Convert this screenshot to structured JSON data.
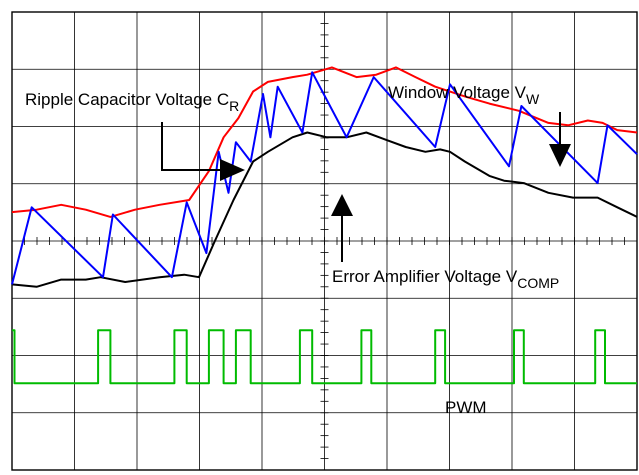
{
  "chart_data": {
    "type": "line",
    "grid": "on",
    "annotations": {
      "ripple_capacitor": {
        "text": "Ripple Capacitor Voltage C",
        "sub": "R"
      },
      "window_voltage": {
        "text": "Window Voltage V",
        "sub": "W"
      },
      "error_amplifier": {
        "text": "Error Amplifier Voltage V",
        "sub": "COMP"
      },
      "pwm": {
        "text": "PWM"
      }
    },
    "series": [
      {
        "key": "window",
        "color": "#ff0000",
        "points": [
          [
            0,
            5.35
          ],
          [
            0.5,
            5.4
          ],
          [
            1,
            5.5
          ],
          [
            1.5,
            5.4
          ],
          [
            2,
            5.25
          ],
          [
            2.5,
            5.4
          ],
          [
            3,
            5.5
          ],
          [
            3.6,
            5.6
          ],
          [
            4,
            6.2
          ],
          [
            4.3,
            6.9
          ],
          [
            4.6,
            7.3
          ],
          [
            4.9,
            7.85
          ],
          [
            5.2,
            8.05
          ],
          [
            5.7,
            8.15
          ],
          [
            6,
            8.2
          ],
          [
            6.5,
            8.35
          ],
          [
            7,
            8.15
          ],
          [
            7.4,
            8.2
          ],
          [
            7.8,
            8.35
          ],
          [
            8.2,
            8.15
          ],
          [
            8.6,
            7.95
          ],
          [
            9.2,
            7.75
          ],
          [
            9.7,
            7.6
          ],
          [
            10.3,
            7.45
          ],
          [
            10.9,
            7.2
          ],
          [
            11.3,
            7.15
          ],
          [
            11.7,
            7.25
          ],
          [
            12,
            7.2
          ],
          [
            12.3,
            7.05
          ],
          [
            12.7,
            7.0
          ]
        ]
      },
      {
        "key": "comp",
        "color": "#000000",
        "points": [
          [
            0,
            3.85
          ],
          [
            0.5,
            3.8
          ],
          [
            1,
            3.95
          ],
          [
            1.5,
            3.95
          ],
          [
            1.8,
            4.0
          ],
          [
            2.3,
            3.9
          ],
          [
            3,
            4.0
          ],
          [
            3.5,
            4.05
          ],
          [
            3.8,
            4.0
          ],
          [
            4.1,
            4.7
          ],
          [
            4.5,
            5.6
          ],
          [
            4.9,
            6.4
          ],
          [
            5.2,
            6.6
          ],
          [
            5.7,
            6.9
          ],
          [
            6,
            7.0
          ],
          [
            6.4,
            6.9
          ],
          [
            6.8,
            6.9
          ],
          [
            7.2,
            7.0
          ],
          [
            7.6,
            6.85
          ],
          [
            8,
            6.7
          ],
          [
            8.4,
            6.6
          ],
          [
            8.7,
            6.65
          ],
          [
            8.9,
            6.6
          ],
          [
            9.2,
            6.4
          ],
          [
            9.7,
            6.1
          ],
          [
            10,
            6.0
          ],
          [
            10.4,
            5.95
          ],
          [
            10.9,
            5.75
          ],
          [
            11.4,
            5.65
          ],
          [
            11.9,
            5.65
          ],
          [
            12.3,
            5.45
          ],
          [
            12.7,
            5.25
          ]
        ]
      },
      {
        "key": "ripple",
        "color": "#0000ff",
        "points": [
          [
            0,
            3.85
          ],
          [
            0.4,
            5.45
          ],
          [
            1.85,
            4.0
          ],
          [
            2.05,
            5.3
          ],
          [
            3.25,
            4.0
          ],
          [
            3.55,
            5.55
          ],
          [
            3.95,
            4.5
          ],
          [
            4.2,
            6.6
          ],
          [
            4.4,
            5.75
          ],
          [
            4.55,
            6.8
          ],
          [
            4.85,
            6.4
          ],
          [
            5.1,
            7.8
          ],
          [
            5.25,
            6.9
          ],
          [
            5.4,
            7.95
          ],
          [
            5.9,
            7.0
          ],
          [
            6.1,
            8.25
          ],
          [
            6.8,
            6.9
          ],
          [
            7.35,
            8.15
          ],
          [
            8.6,
            6.7
          ],
          [
            8.9,
            8.0
          ],
          [
            10.1,
            6.3
          ],
          [
            10.35,
            7.55
          ],
          [
            11.9,
            5.95
          ],
          [
            12.1,
            7.15
          ],
          [
            12.7,
            6.55
          ]
        ]
      },
      {
        "key": "pwm",
        "color": "#00bb00",
        "points": [
          [
            0,
            2.9
          ],
          [
            0.05,
            2.9
          ],
          [
            0.05,
            1.8
          ],
          [
            1.75,
            1.8
          ],
          [
            1.75,
            2.9
          ],
          [
            2.0,
            2.9
          ],
          [
            2.0,
            1.8
          ],
          [
            3.3,
            1.8
          ],
          [
            3.3,
            2.9
          ],
          [
            3.55,
            2.9
          ],
          [
            3.55,
            1.8
          ],
          [
            4.0,
            1.8
          ],
          [
            4.0,
            2.9
          ],
          [
            4.3,
            2.9
          ],
          [
            4.3,
            1.8
          ],
          [
            4.55,
            1.8
          ],
          [
            4.55,
            2.9
          ],
          [
            4.85,
            2.9
          ],
          [
            4.85,
            1.8
          ],
          [
            5.85,
            1.8
          ],
          [
            5.85,
            2.9
          ],
          [
            6.1,
            2.9
          ],
          [
            6.1,
            1.8
          ],
          [
            7.1,
            1.8
          ],
          [
            7.1,
            2.9
          ],
          [
            7.3,
            2.9
          ],
          [
            7.3,
            1.8
          ],
          [
            8.6,
            1.8
          ],
          [
            8.6,
            2.9
          ],
          [
            8.8,
            2.9
          ],
          [
            8.8,
            1.8
          ],
          [
            10.2,
            1.8
          ],
          [
            10.2,
            2.9
          ],
          [
            10.4,
            2.9
          ],
          [
            10.4,
            1.8
          ],
          [
            11.85,
            1.8
          ],
          [
            11.85,
            2.9
          ],
          [
            12.05,
            2.9
          ],
          [
            12.05,
            1.8
          ],
          [
            12.7,
            1.8
          ]
        ]
      }
    ],
    "xlim": [
      0,
      12.7
    ],
    "ylim": [
      0,
      9.5
    ]
  }
}
